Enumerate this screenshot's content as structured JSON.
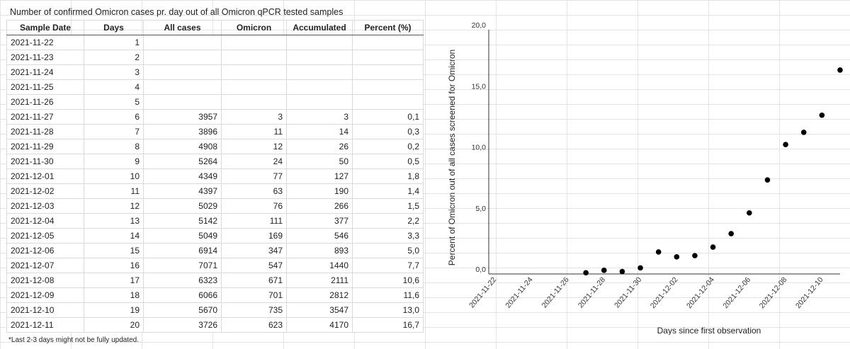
{
  "table": {
    "title": "Number of confirmed Omicron cases pr. day out of all Omicron qPCR tested samples",
    "headers": [
      "Sample Date",
      "Days",
      "All cases",
      "Omicron",
      "Accumulated",
      "Percent (%)"
    ],
    "rows": [
      [
        "2021-11-22",
        "1",
        "",
        "",
        "",
        ""
      ],
      [
        "2021-11-23",
        "2",
        "",
        "",
        "",
        ""
      ],
      [
        "2021-11-24",
        "3",
        "",
        "",
        "",
        ""
      ],
      [
        "2021-11-25",
        "4",
        "",
        "",
        "",
        ""
      ],
      [
        "2021-11-26",
        "5",
        "",
        "",
        "",
        ""
      ],
      [
        "2021-11-27",
        "6",
        "3957",
        "3",
        "3",
        "0,1"
      ],
      [
        "2021-11-28",
        "7",
        "3896",
        "11",
        "14",
        "0,3"
      ],
      [
        "2021-11-29",
        "8",
        "4908",
        "12",
        "26",
        "0,2"
      ],
      [
        "2021-11-30",
        "9",
        "5264",
        "24",
        "50",
        "0,5"
      ],
      [
        "2021-12-01",
        "10",
        "4349",
        "77",
        "127",
        "1,8"
      ],
      [
        "2021-12-02",
        "11",
        "4397",
        "63",
        "190",
        "1,4"
      ],
      [
        "2021-12-03",
        "12",
        "5029",
        "76",
        "266",
        "1,5"
      ],
      [
        "2021-12-04",
        "13",
        "5142",
        "111",
        "377",
        "2,2"
      ],
      [
        "2021-12-05",
        "14",
        "5049",
        "169",
        "546",
        "3,3"
      ],
      [
        "2021-12-06",
        "15",
        "6914",
        "347",
        "893",
        "5,0"
      ],
      [
        "2021-12-07",
        "16",
        "7071",
        "547",
        "1440",
        "7,7"
      ],
      [
        "2021-12-08",
        "17",
        "6323",
        "671",
        "2111",
        "10,6"
      ],
      [
        "2021-12-09",
        "18",
        "6066",
        "701",
        "2812",
        "11,6"
      ],
      [
        "2021-12-10",
        "19",
        "5670",
        "735",
        "3547",
        "13,0"
      ],
      [
        "2021-12-11",
        "20",
        "3726",
        "623",
        "4170",
        "16,7"
      ]
    ],
    "footnote": "*Last 2-3 days might not be fully updated."
  },
  "chart_data": {
    "type": "scatter",
    "xlabel": "Days since first observation",
    "ylabel": "Percent of Omicron out of all cases screened for Omicron",
    "x": [
      "2021-11-22",
      "2021-11-23",
      "2021-11-24",
      "2021-11-25",
      "2021-11-26",
      "2021-11-27",
      "2021-11-28",
      "2021-11-29",
      "2021-11-30",
      "2021-12-01",
      "2021-12-02",
      "2021-12-03",
      "2021-12-04",
      "2021-12-05",
      "2021-12-06",
      "2021-12-07",
      "2021-12-08",
      "2021-12-09",
      "2021-12-10",
      "2021-12-11"
    ],
    "y": [
      null,
      null,
      null,
      null,
      null,
      0.1,
      0.3,
      0.2,
      0.5,
      1.8,
      1.4,
      1.5,
      2.2,
      3.3,
      5.0,
      7.7,
      10.6,
      11.6,
      13.0,
      16.7
    ],
    "x_tick_labels": [
      "2021-11-22",
      "2021-11-24",
      "2021-11-26",
      "2021-11-28",
      "2021-11-30",
      "2021-12-02",
      "2021-12-04",
      "2021-12-06",
      "2021-12-08",
      "2021-12-10"
    ],
    "y_tick_labels": [
      "0,0",
      "5,0",
      "10,0",
      "15,0",
      "20,0"
    ],
    "ylim": [
      0,
      20
    ],
    "grid": false,
    "marker_color": "#000000"
  }
}
